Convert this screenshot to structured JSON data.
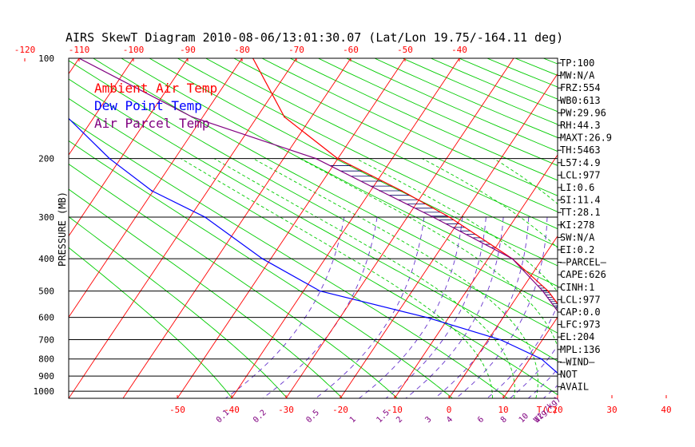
{
  "chart_data": {
    "type": "skew-t",
    "title": "AIRS SkewT Diagram 2010-08-06/13:01:30.07 (Lat/Lon 19.75/-164.11 deg)",
    "ylabel": "PRESSURE (MB)",
    "xlabel_bottom_unit": "T(C)",
    "mixing_ratio_unit": "W(g/kg)",
    "pressure_ticks": [
      100,
      200,
      300,
      400,
      500,
      600,
      700,
      800,
      900,
      1000
    ],
    "pressure_range": [
      100,
      1050
    ],
    "top_temperature_ticks": [
      -120,
      -110,
      -100,
      -90,
      -80,
      -70,
      -60,
      -50,
      -40
    ],
    "bottom_temperature_ticks": [
      -50,
      -40,
      -30,
      -20,
      -10,
      0,
      10,
      20,
      30,
      40
    ],
    "mixing_ratio_ticks": [
      "0.1",
      "0.2",
      "0.5",
      "1",
      "1.5",
      "2",
      "3",
      "4",
      "6",
      "8",
      "10",
      "12",
      "15",
      "20",
      "25",
      "30",
      "40"
    ],
    "legend": [
      {
        "label": "Ambient Air Temp",
        "color": "#ff0000"
      },
      {
        "label": "Dew Point Temp",
        "color": "#0000ff"
      },
      {
        "label": "Air Parcel Temp",
        "color": "#800080"
      }
    ],
    "indices": [
      "TP:100",
      "MW:N/A",
      "FRZ:554",
      "WB0:613",
      "PW:29.96",
      "RH:44.3",
      "MAXT:26.9",
      "TH:5463",
      "L57:4.9",
      "LCL:977",
      "LI:0.6",
      "SI:11.4",
      "TT:28.1",
      "KI:278",
      "SW:N/A",
      "EI:0.2",
      "—PARCEL—",
      "CAPE:626",
      "CINH:1",
      "LCL:977",
      "CAP:0.0",
      "LFC:973",
      "EL:204",
      "MPL:136",
      "—WIND—",
      "NOT",
      "AVAIL"
    ],
    "series": [
      {
        "name": "Ambient Air Temp",
        "color": "#ff0000",
        "points": [
          [
            100,
            -78
          ],
          [
            150,
            -70
          ],
          [
            200,
            -58
          ],
          [
            250,
            -44
          ],
          [
            300,
            -33
          ],
          [
            400,
            -17
          ],
          [
            500,
            -6
          ],
          [
            600,
            2
          ],
          [
            700,
            8
          ],
          [
            800,
            13
          ],
          [
            900,
            20
          ],
          [
            1000,
            26
          ]
        ]
      },
      {
        "name": "Dew Point Temp",
        "color": "#0000ff",
        "points": [
          [
            100,
            -113
          ],
          [
            150,
            -110
          ],
          [
            200,
            -100
          ],
          [
            250,
            -90
          ],
          [
            300,
            -78
          ],
          [
            400,
            -63
          ],
          [
            500,
            -48
          ],
          [
            600,
            -24
          ],
          [
            700,
            -6
          ],
          [
            800,
            6
          ],
          [
            900,
            14
          ],
          [
            1000,
            21
          ]
        ]
      },
      {
        "name": "Air Parcel Temp",
        "color": "#800080",
        "points": [
          [
            100,
            -110
          ],
          [
            150,
            -87
          ],
          [
            200,
            -62
          ],
          [
            250,
            -48
          ],
          [
            300,
            -36
          ],
          [
            400,
            -17
          ],
          [
            500,
            -7
          ],
          [
            600,
            1
          ],
          [
            700,
            7
          ],
          [
            800,
            12
          ],
          [
            900,
            18
          ],
          [
            1000,
            25
          ]
        ]
      }
    ]
  }
}
